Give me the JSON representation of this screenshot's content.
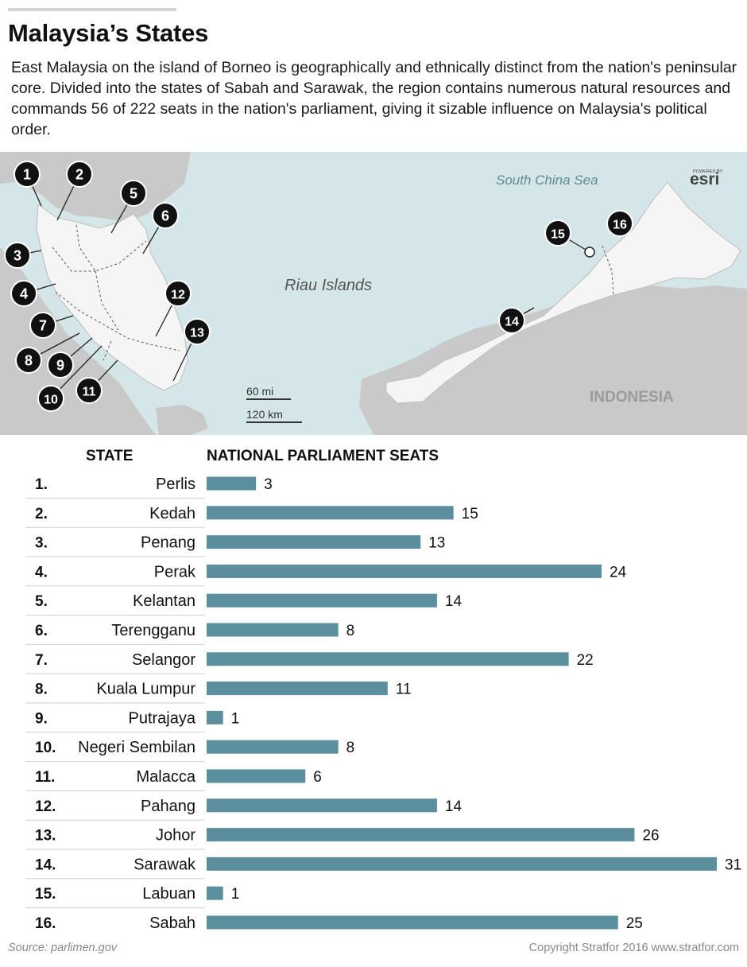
{
  "header": {
    "title": "Malaysia’s States",
    "intro": "East Malaysia on the island of Borneo is geographically and ethnically distinct from the nation's peninsular core. Divided into the states of Sabah and Sarawak, the region contains numerous natural resources and commands 56 of 222 seats in the nation's parliament, giving it sizable influence on Malaysia's political order."
  },
  "map": {
    "labels": {
      "sea": "South China Sea",
      "islands": "Riau Islands",
      "country": "INDONESIA",
      "powered_by": "POWERED BY",
      "esri": "esri",
      "scale_mi": "60 mi",
      "scale_km": "120 km"
    },
    "markers": [
      "1",
      "2",
      "3",
      "4",
      "5",
      "6",
      "7",
      "8",
      "9",
      "10",
      "11",
      "12",
      "13",
      "14",
      "15",
      "16"
    ],
    "colors": {
      "water": "#d4e6e8",
      "land": "#f5f5f5",
      "foreign_land": "#c9c9c9",
      "marker": "#111111"
    }
  },
  "table": {
    "state_header": "STATE",
    "seats_header": "NATIONAL PARLIAMENT SEATS"
  },
  "chart_data": {
    "type": "bar",
    "orientation": "horizontal",
    "xlabel": "NATIONAL PARLIAMENT SEATS",
    "ylabel": "STATE",
    "xlim": [
      0,
      31
    ],
    "grid": false,
    "bar_color": "#5b8f9e",
    "ranks": [
      "1.",
      "2.",
      "3.",
      "4.",
      "5.",
      "6.",
      "7.",
      "8.",
      "9.",
      "10.",
      "11.",
      "12.",
      "13.",
      "14.",
      "15.",
      "16."
    ],
    "categories": [
      "Perlis",
      "Kedah",
      "Penang",
      "Perak",
      "Kelantan",
      "Terengganu",
      "Selangor",
      "Kuala Lumpur",
      "Putrajaya",
      "Negeri Sembilan",
      "Malacca",
      "Pahang",
      "Johor",
      "Sarawak",
      "Labuan",
      "Sabah"
    ],
    "values": [
      3,
      15,
      13,
      24,
      14,
      8,
      22,
      11,
      1,
      8,
      6,
      14,
      26,
      31,
      1,
      25
    ]
  },
  "footer": {
    "source": "Source: parlimen.gov",
    "copyright": "Copyright Stratfor 2016   www.stratfor.com"
  }
}
